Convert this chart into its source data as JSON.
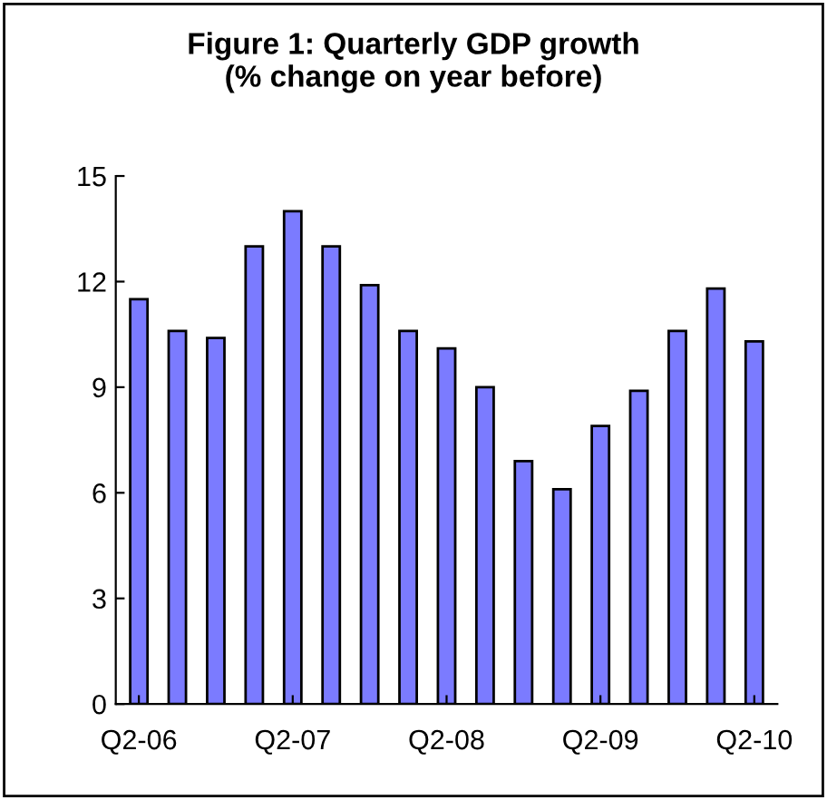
{
  "chart_data": {
    "type": "bar",
    "title": "Figure 1: Quarterly GDP growth\n(% change on year before)",
    "categories": [
      "Q2-06",
      null,
      null,
      null,
      "Q2-07",
      null,
      null,
      null,
      "Q2-08",
      null,
      null,
      null,
      "Q2-09",
      null,
      null,
      null,
      "Q2-10"
    ],
    "values": [
      11.5,
      10.6,
      10.4,
      13.0,
      14.0,
      13.0,
      11.9,
      10.6,
      10.1,
      9.0,
      6.9,
      6.1,
      7.9,
      8.9,
      10.6,
      11.8,
      10.3
    ],
    "color": "#7b7bff",
    "ylim": [
      0,
      15
    ],
    "yticks": [
      0,
      3,
      6,
      9,
      12,
      15
    ],
    "grid": false
  }
}
